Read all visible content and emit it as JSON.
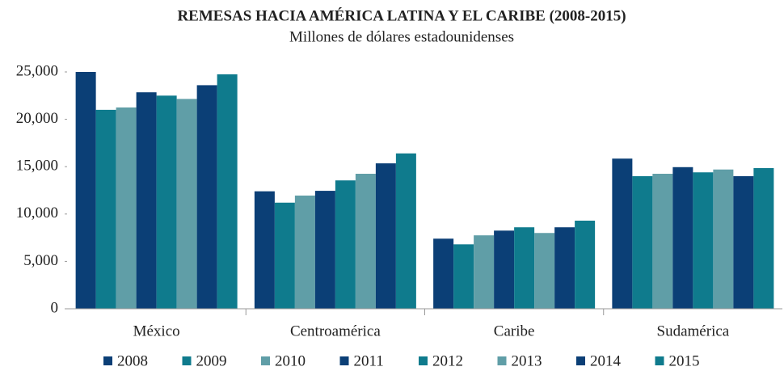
{
  "chart_data": {
    "type": "bar",
    "title": "REMESAS HACIA AMÉRICA LATINA Y EL CARIBE (2008-2015)",
    "subtitle": "Millones de dólares estadounidenses",
    "categories": [
      "México",
      "Centroamérica",
      "Caribe",
      "Sudamérica"
    ],
    "series": [
      {
        "name": "2008",
        "color": "#0b3f76",
        "values": [
          25000,
          12400,
          7400,
          15850
        ]
      },
      {
        "name": "2009",
        "color": "#0f7b8d",
        "values": [
          21000,
          11200,
          6800,
          14000
        ]
      },
      {
        "name": "2010",
        "color": "#609ea7",
        "values": [
          21250,
          11950,
          7750,
          14250
        ]
      },
      {
        "name": "2011",
        "color": "#0b3f76",
        "values": [
          22850,
          12450,
          8250,
          14950
        ]
      },
      {
        "name": "2012",
        "color": "#0f7b8d",
        "values": [
          22500,
          13550,
          8600,
          14400
        ]
      },
      {
        "name": "2013",
        "color": "#609ea7",
        "values": [
          22150,
          14250,
          8000,
          14700
        ]
      },
      {
        "name": "2014",
        "color": "#0b3f76",
        "values": [
          23600,
          15350,
          8600,
          14000
        ]
      },
      {
        "name": "2015",
        "color": "#0f7b8d",
        "values": [
          24750,
          16400,
          9300,
          14850
        ]
      }
    ],
    "ylim": [
      0,
      25000
    ],
    "yticks": [
      0,
      {
        "value": 5000,
        "label": "5,000"
      },
      {
        "value": 10000,
        "label": "10,000"
      },
      {
        "value": 15000,
        "label": "15,000"
      },
      {
        "value": 20000,
        "label": "20,000"
      },
      {
        "value": 25000,
        "label": "25,000"
      }
    ],
    "grid": false,
    "legend": "bottom"
  }
}
